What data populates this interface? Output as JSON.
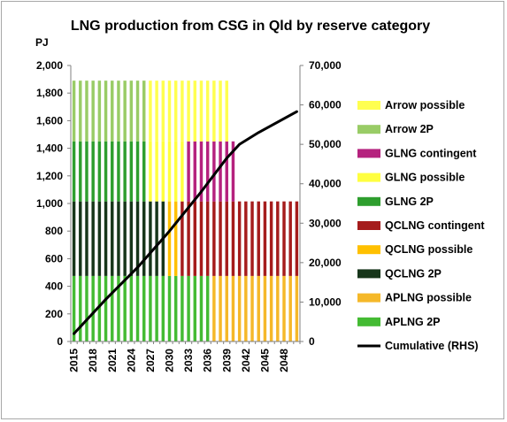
{
  "chart_data": {
    "type": "bar",
    "stacked": true,
    "title": "LNG  production from CSG in Qld by reserve category",
    "ylabel": "PJ",
    "ylim": [
      0,
      2000
    ],
    "y2lim": [
      0,
      70000
    ],
    "yticks": [
      "0",
      "200",
      "400",
      "600",
      "800",
      "1,000",
      "1,200",
      "1,400",
      "1,600",
      "1,800",
      "2,000"
    ],
    "y2ticks": [
      "0",
      "10,000",
      "20,000",
      "30,000",
      "40,000",
      "50,000",
      "60,000",
      "70,000"
    ],
    "x_start": 2015,
    "x_end": 2050,
    "xticks": [
      "2015",
      "2018",
      "2021",
      "2024",
      "2027",
      "2030",
      "2033",
      "2036",
      "2039",
      "2042",
      "2045",
      "2048"
    ],
    "grid": false,
    "legend_position": "right",
    "series": [
      {
        "name": "APLNG 2P",
        "color": "#44bb33",
        "start": 2015,
        "end": 2036,
        "values": [
          475,
          475,
          475,
          475,
          475,
          475,
          475,
          475,
          475,
          475,
          475,
          475,
          475,
          475,
          475,
          475,
          475,
          475,
          475,
          475,
          475,
          475
        ]
      },
      {
        "name": "APLNG possible",
        "color": "#f5b829",
        "start": 2037,
        "end": 2050,
        "values": [
          475,
          475,
          475,
          475,
          475,
          475,
          475,
          475,
          475,
          475,
          475,
          475,
          475,
          475
        ]
      },
      {
        "name": "QCLNG  2P",
        "color": "#17361a",
        "start": 2015,
        "end": 2029,
        "values": [
          540,
          540,
          540,
          540,
          540,
          540,
          540,
          540,
          540,
          540,
          540,
          540,
          540,
          540,
          540
        ]
      },
      {
        "name": "QCLNG possible",
        "color": "#ffc000",
        "start": 2030,
        "end": 2031,
        "values": [
          540,
          540
        ]
      },
      {
        "name": "QCLNG contingent",
        "color": "#a51c1c",
        "start": 2032,
        "end": 2050,
        "values": [
          540,
          540,
          540,
          540,
          540,
          540,
          540,
          540,
          540,
          540,
          540,
          540,
          540,
          540,
          540,
          540,
          540,
          540,
          540
        ]
      },
      {
        "name": "GLNG  2P",
        "color": "#2e9e2e",
        "start": 2015,
        "end": 2026,
        "values": [
          435,
          435,
          435,
          435,
          435,
          435,
          435,
          435,
          435,
          435,
          435,
          435
        ]
      },
      {
        "name": "GLNG possible",
        "color": "#ffff40",
        "start": 2027,
        "end": 2032,
        "values": [
          435,
          435,
          435,
          435,
          435,
          435
        ]
      },
      {
        "name": "GLNG contingent",
        "color": "#b5227e",
        "start": 2033,
        "end": 2040,
        "values": [
          435,
          435,
          435,
          435,
          435,
          435,
          435,
          435
        ]
      },
      {
        "name": "Arrow 2P",
        "color": "#99cc66",
        "start": 2015,
        "end": 2026,
        "values": [
          440,
          440,
          440,
          440,
          440,
          440,
          440,
          440,
          440,
          440,
          440,
          440
        ]
      },
      {
        "name": "Arrow possible",
        "color": "#ffff50",
        "start": 2027,
        "end": 2039,
        "values": [
          440,
          440,
          440,
          440,
          440,
          440,
          440,
          440,
          440,
          440,
          440,
          440,
          440
        ]
      }
    ],
    "cumulative": {
      "name": "Cumulative (RHS)",
      "color": "#000000",
      "axis": "right",
      "x": [
        2015,
        2020,
        2025,
        2030,
        2035,
        2039,
        2041,
        2044,
        2050
      ],
      "y": [
        2000,
        10700,
        18800,
        28000,
        38000,
        46500,
        50000,
        53000,
        58300
      ]
    },
    "legend_order": [
      "Arrow possible",
      "Arrow 2P",
      "GLNG contingent",
      "GLNG possible",
      "GLNG  2P",
      "QCLNG contingent",
      "QCLNG possible",
      "QCLNG  2P",
      "APLNG possible",
      "APLNG 2P",
      "Cumulative (RHS)"
    ]
  }
}
